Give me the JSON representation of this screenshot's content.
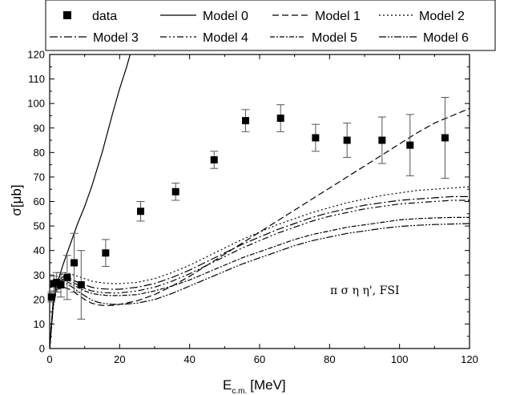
{
  "chart_data": {
    "type": "scatter",
    "xlabel": "E",
    "xlabel_sub": "c.m.",
    "xlabel_unit": "[MeV]",
    "ylabel": "σ[μb]",
    "xlim": [
      0,
      120
    ],
    "ylim": [
      0,
      120
    ],
    "x_ticks": [
      0,
      20,
      40,
      60,
      80,
      100,
      120
    ],
    "y_ticks": [
      0,
      10,
      20,
      30,
      40,
      50,
      60,
      70,
      80,
      90,
      100,
      110,
      120
    ],
    "annotation": "π σ η η', FSI",
    "grid": false,
    "legend_position": "top",
    "legend": [
      "data",
      "Model 0",
      "Model 1",
      "Model 2",
      "Model 3",
      "Model 4",
      "Model 5",
      "Model 6"
    ],
    "data_points": [
      {
        "x": 0.5,
        "y": 21,
        "err": 2
      },
      {
        "x": 1.2,
        "y": 26.5,
        "err": 3
      },
      {
        "x": 2.0,
        "y": 27,
        "err": 4
      },
      {
        "x": 3.2,
        "y": 26,
        "err": 5
      },
      {
        "x": 5.0,
        "y": 29,
        "err": 9
      },
      {
        "x": 7.0,
        "y": 35,
        "err": 12
      },
      {
        "x": 9.0,
        "y": 26,
        "err": 14
      },
      {
        "x": 16,
        "y": 39,
        "err": 5.5
      },
      {
        "x": 26,
        "y": 56,
        "err": 4
      },
      {
        "x": 36,
        "y": 64,
        "err": 3.5
      },
      {
        "x": 47,
        "y": 77,
        "err": 3.5
      },
      {
        "x": 56,
        "y": 93,
        "err": 4.5
      },
      {
        "x": 66,
        "y": 94,
        "err": 5.5
      },
      {
        "x": 76,
        "y": 86,
        "err": 5.5
      },
      {
        "x": 85,
        "y": 85,
        "err": 7
      },
      {
        "x": 95,
        "y": 85,
        "err": 9.5
      },
      {
        "x": 103,
        "y": 83,
        "err": 12.5
      },
      {
        "x": 113,
        "y": 86,
        "err": 16.5
      }
    ],
    "series": [
      {
        "name": "Model 0",
        "dash": "",
        "x": [
          0,
          1,
          2,
          4,
          6,
          8,
          10,
          12,
          15,
          18,
          20,
          22,
          24
        ],
        "y": [
          0,
          19,
          26,
          35,
          43,
          51,
          58,
          66,
          80,
          96,
          106,
          115,
          125
        ]
      },
      {
        "name": "Model 1",
        "dash": "8,4",
        "x": [
          0,
          1,
          2,
          4,
          6,
          8,
          10,
          12,
          14,
          16,
          18,
          20,
          25,
          30,
          35,
          40,
          45,
          50,
          55,
          60,
          65,
          70,
          75,
          80,
          85,
          90,
          95,
          100,
          105,
          110,
          115,
          120
        ],
        "y": [
          0,
          17,
          24,
          25,
          24,
          22,
          20,
          18.5,
          17.8,
          17.5,
          17.6,
          18,
          19.5,
          22,
          25.5,
          29.5,
          34,
          38.5,
          43,
          47.5,
          52,
          56.5,
          61,
          65.5,
          70,
          74.5,
          79,
          83.5,
          88,
          92,
          95,
          98
        ]
      },
      {
        "name": "Model 2",
        "dash": "2,3",
        "x": [
          0,
          1,
          2,
          4,
          6,
          8,
          10,
          12,
          14,
          16,
          18,
          20,
          25,
          30,
          35,
          40,
          45,
          50,
          55,
          60,
          65,
          70,
          75,
          80,
          85,
          90,
          95,
          100,
          105,
          110,
          115,
          120
        ],
        "y": [
          0,
          20,
          28,
          31,
          30.5,
          29.5,
          28.5,
          27.5,
          27,
          26.7,
          26.5,
          26.5,
          27,
          28.5,
          31,
          34,
          37.5,
          41,
          44.5,
          47.5,
          50.5,
          53,
          55.5,
          57.5,
          59.5,
          61,
          62.5,
          63.5,
          64.5,
          65,
          65.5,
          66
        ]
      },
      {
        "name": "Model 3",
        "dash": "10,3,2,3",
        "x": [
          0,
          1,
          2,
          4,
          6,
          8,
          10,
          12,
          14,
          16,
          18,
          20,
          25,
          30,
          35,
          40,
          45,
          50,
          55,
          60,
          65,
          70,
          75,
          80,
          85,
          90,
          95,
          100,
          105,
          110,
          115,
          120
        ],
        "y": [
          0,
          19,
          27,
          29.5,
          28.5,
          27,
          26,
          25,
          24.5,
          24.3,
          24.2,
          24.2,
          25,
          26.5,
          29,
          32,
          35.5,
          39,
          42.5,
          45.5,
          48.5,
          51,
          53.5,
          55.5,
          57,
          58.5,
          59.5,
          60.5,
          61,
          61.5,
          62,
          62
        ]
      },
      {
        "name": "Model 4",
        "dash": "8,3,2,3,2,3",
        "x": [
          0,
          1,
          2,
          4,
          6,
          8,
          10,
          12,
          14,
          16,
          18,
          20,
          25,
          30,
          35,
          40,
          45,
          50,
          55,
          60,
          65,
          70,
          75,
          80,
          85,
          90,
          95,
          100,
          105,
          110,
          115,
          120
        ],
        "y": [
          0,
          18.5,
          26.5,
          28.5,
          27.5,
          26,
          24.5,
          23.5,
          23,
          22.8,
          22.7,
          22.7,
          23.5,
          25,
          27.5,
          30.5,
          34,
          37.5,
          41,
          44,
          47,
          49.5,
          52,
          54,
          55.5,
          57,
          58,
          59,
          59.5,
          60,
          60.5,
          60.5
        ]
      },
      {
        "name": "Model 5",
        "dash": "6,2,2,2",
        "x": [
          0,
          1,
          2,
          4,
          6,
          8,
          10,
          12,
          14,
          16,
          18,
          20,
          25,
          30,
          35,
          40,
          45,
          50,
          55,
          60,
          65,
          70,
          75,
          80,
          85,
          90,
          95,
          100,
          105,
          110,
          115,
          120
        ],
        "y": [
          0,
          18,
          26,
          28,
          26.5,
          25,
          23.5,
          22.5,
          22,
          21.7,
          21.6,
          21.6,
          22,
          23.5,
          25.5,
          28,
          31,
          34,
          37,
          39.5,
          42,
          44.5,
          46.5,
          48,
          49.5,
          50.5,
          51.5,
          52.5,
          53,
          53.3,
          53.5,
          53.5
        ]
      },
      {
        "name": "Model 6",
        "dash": "9,2,2,2,2,2",
        "x": [
          0,
          1,
          2,
          4,
          6,
          8,
          10,
          12,
          14,
          16,
          18,
          20,
          25,
          30,
          35,
          40,
          45,
          50,
          55,
          60,
          65,
          70,
          75,
          80,
          85,
          90,
          95,
          100,
          105,
          110,
          115,
          120
        ],
        "y": [
          0,
          17.5,
          25,
          27,
          25.5,
          23.5,
          21.5,
          19.8,
          18.8,
          18.3,
          18,
          18,
          18.5,
          20,
          22.5,
          25.5,
          28.5,
          31.5,
          34.5,
          37,
          39.5,
          42,
          44,
          45.5,
          47,
          48,
          49,
          49.8,
          50.3,
          50.6,
          50.8,
          51
        ]
      }
    ]
  }
}
